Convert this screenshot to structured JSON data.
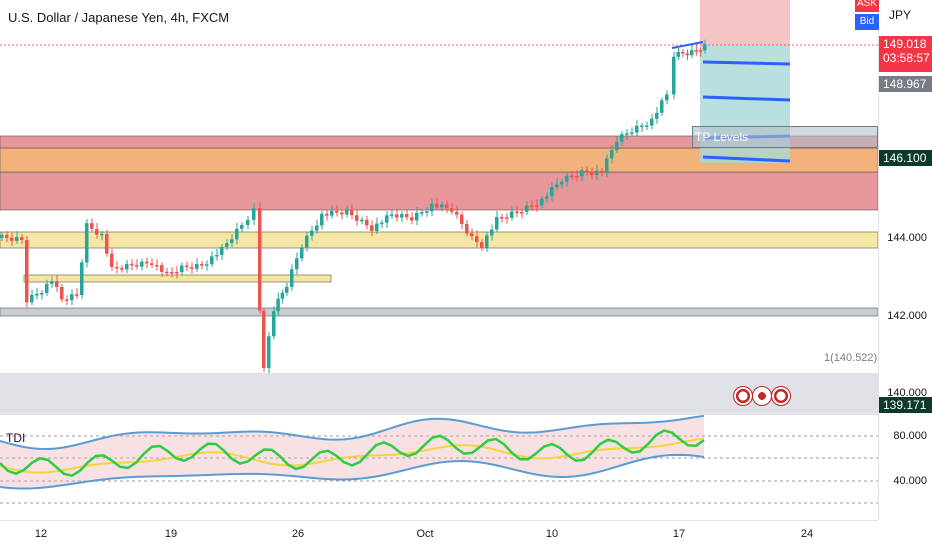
{
  "symbol": {
    "title": "U.S. Dollar / Japanese Yen, 4h, FXCM",
    "currency": "JPY",
    "ask_label": "ASK",
    "bid_label": "Bid"
  },
  "price_axis": {
    "ticks": [
      "144.000",
      "142.000",
      "140.000"
    ],
    "last_price": "149.018",
    "countdown": "03:58:57",
    "bid_price": "148.967",
    "level_146": "146.100",
    "level_139": "139.171"
  },
  "osc_axis": {
    "ticks": [
      "80.000",
      "40.000"
    ]
  },
  "time_axis": {
    "ticks": [
      "12",
      "19",
      "26",
      "Oct",
      "10",
      "17",
      "24"
    ]
  },
  "annotations": {
    "tp_levels": "TP Levels",
    "low_marker": "1(140.522)",
    "tdi": "TDI"
  },
  "colors": {
    "bull": "#26a69a",
    "bear": "#ef5350",
    "resistance_zone": "#e79799",
    "orange_zone": "#f2b27a",
    "support_zone": "#f5e6a3",
    "tp_line": "#2962ff",
    "accent_tag": "#f23645",
    "dark_tag": "#0c3b2e"
  },
  "events": [
    {
      "icon": "us-flag-icon"
    },
    {
      "icon": "jp-flag-icon"
    },
    {
      "icon": "us-flag-icon"
    }
  ]
}
